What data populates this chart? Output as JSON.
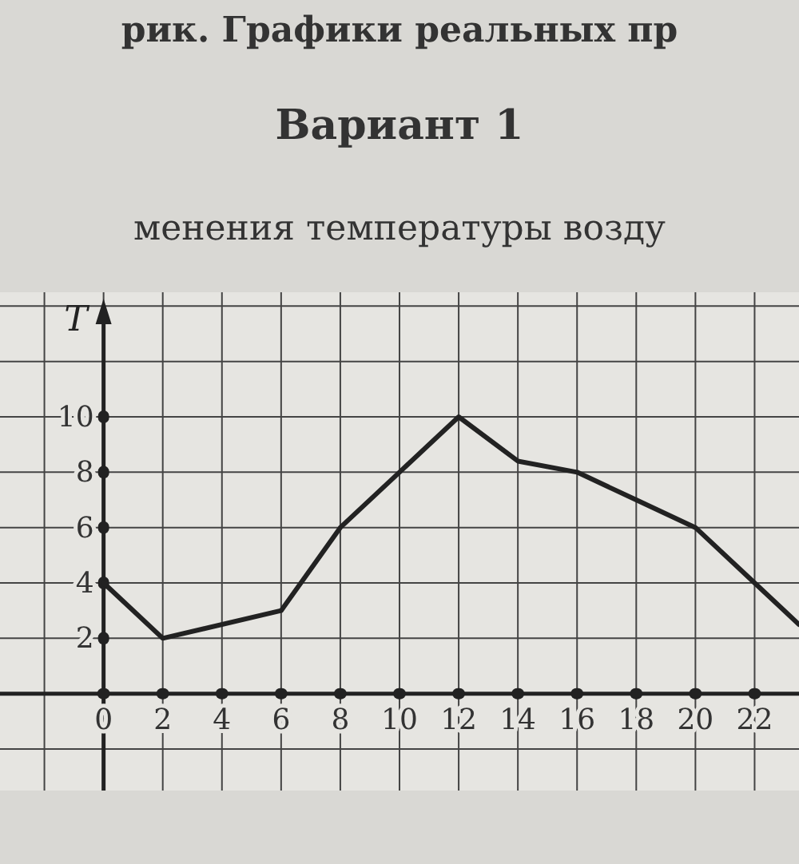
{
  "chart_data": {
    "type": "line",
    "title": "Вариант 1",
    "subtitle": "менения температуры возду",
    "annotations": [
      "рик. Графики реальных пр"
    ],
    "ylabel": "T",
    "x": [
      0,
      2,
      6,
      8,
      10,
      12,
      14,
      16,
      18,
      20,
      22,
      23.5
    ],
    "series": [
      {
        "color": "#222222",
        "values": [
          4,
          2,
          3,
          6,
          8,
          10,
          8.4,
          8,
          7,
          6,
          4,
          2.5
        ]
      }
    ],
    "xlim": [
      -3.5,
      23.5
    ],
    "ylim": [
      -3.5,
      14.5
    ],
    "xticks": [
      0,
      2,
      4,
      6,
      8,
      10,
      12,
      14,
      16,
      18,
      20,
      22
    ],
    "yticks": [
      2,
      4,
      6,
      8,
      10
    ],
    "grid": true,
    "marker": "none",
    "line_style": "solid"
  }
}
